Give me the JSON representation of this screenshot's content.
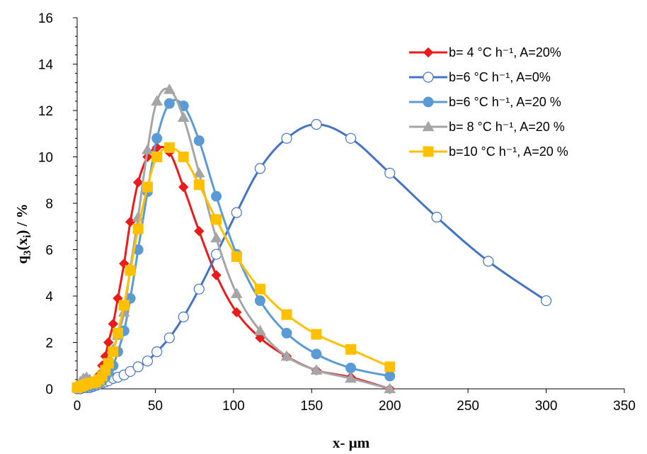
{
  "chart_data": {
    "type": "line",
    "xlabel": "x- µm",
    "ylabel_main": "q",
    "ylabel_sub": "3",
    "ylabel_paren_open": "(x",
    "ylabel_sub2": "i",
    "ylabel_rest": ") / %",
    "xlim": [
      0,
      350
    ],
    "ylim": [
      0,
      16
    ],
    "xticks": [
      0,
      50,
      100,
      150,
      200,
      250,
      300,
      350
    ],
    "yticks": [
      0,
      2,
      4,
      6,
      8,
      10,
      12,
      14,
      16
    ],
    "grid": false,
    "legend_position": "top-right",
    "series": [
      {
        "name": "b= 4 °C h⁻¹, A=20%",
        "color": "#e81c1c",
        "marker": "diamond",
        "x": [
          0,
          2,
          4,
          6,
          8,
          10,
          12,
          14,
          16,
          18,
          20,
          23,
          26,
          30,
          34,
          39,
          45,
          51,
          59,
          68,
          78,
          89,
          102,
          117,
          134,
          153,
          175,
          200
        ],
        "y": [
          0.05,
          0.1,
          0.15,
          0.2,
          0.25,
          0.3,
          0.4,
          0.6,
          1.0,
          1.4,
          2.0,
          2.8,
          3.9,
          5.4,
          7.2,
          8.9,
          10.0,
          10.4,
          10.2,
          8.7,
          6.8,
          4.9,
          3.3,
          2.2,
          1.4,
          0.8,
          0.5,
          0.0
        ]
      },
      {
        "name": "b=6 °C h⁻¹, A=0%",
        "color": "#4472c4",
        "marker": "open-circle",
        "x": [
          0,
          2,
          4,
          6,
          8,
          10,
          12,
          14,
          16,
          18,
          20,
          23,
          26,
          30,
          34,
          39,
          45,
          51,
          59,
          68,
          78,
          89,
          102,
          117,
          134,
          153,
          175,
          200,
          230,
          263,
          300
        ],
        "y": [
          0.0,
          0.0,
          0.05,
          0.05,
          0.05,
          0.1,
          0.15,
          0.2,
          0.25,
          0.3,
          0.35,
          0.45,
          0.5,
          0.6,
          0.75,
          0.95,
          1.2,
          1.6,
          2.2,
          3.1,
          4.3,
          5.8,
          7.6,
          9.5,
          10.8,
          11.4,
          10.8,
          9.3,
          7.4,
          5.5,
          3.8
        ]
      },
      {
        "name": "b=6 °C h⁻¹, A=20 %",
        "color": "#5b9bd5",
        "marker": "circle",
        "x": [
          0,
          2,
          4,
          6,
          8,
          10,
          12,
          14,
          16,
          18,
          20,
          23,
          26,
          30,
          34,
          39,
          45,
          51,
          59,
          68,
          78,
          89,
          102,
          117,
          134,
          153,
          175,
          200
        ],
        "y": [
          0.05,
          0.05,
          0.1,
          0.1,
          0.1,
          0.15,
          0.2,
          0.25,
          0.35,
          0.5,
          0.7,
          1.0,
          1.6,
          2.5,
          3.9,
          6.0,
          8.5,
          10.8,
          12.3,
          12.2,
          10.7,
          8.3,
          5.8,
          3.8,
          2.4,
          1.5,
          0.9,
          0.55
        ]
      },
      {
        "name": "b= 8 °C h⁻¹, A=20 %",
        "color": "#a5a5a5",
        "marker": "triangle",
        "x": [
          0,
          2,
          4,
          6,
          8,
          10,
          12,
          14,
          16,
          18,
          20,
          23,
          26,
          30,
          34,
          39,
          45,
          51,
          59,
          68,
          78,
          89,
          102,
          117,
          134,
          153,
          175,
          200
        ],
        "y": [
          0.1,
          0.3,
          0.45,
          0.5,
          0.4,
          0.3,
          0.3,
          0.4,
          0.6,
          0.9,
          1.2,
          1.7,
          2.3,
          3.3,
          5.2,
          7.4,
          10.3,
          12.4,
          12.9,
          11.7,
          9.3,
          6.5,
          4.1,
          2.5,
          1.4,
          0.8,
          0.45,
          0.0
        ]
      },
      {
        "name": "b=10 °C h⁻¹, A=20 %",
        "color": "#ffc000",
        "marker": "square",
        "x": [
          0,
          2,
          4,
          6,
          8,
          10,
          12,
          14,
          16,
          18,
          20,
          23,
          26,
          30,
          34,
          39,
          45,
          51,
          59,
          68,
          78,
          89,
          102,
          117,
          134,
          153,
          175,
          200
        ],
        "y": [
          0.05,
          0.1,
          0.15,
          0.2,
          0.25,
          0.25,
          0.3,
          0.4,
          0.55,
          0.8,
          1.1,
          1.6,
          2.4,
          3.6,
          5.1,
          6.9,
          8.7,
          10.0,
          10.4,
          10.0,
          8.8,
          7.3,
          5.7,
          4.3,
          3.2,
          2.35,
          1.7,
          0.95
        ]
      }
    ]
  }
}
